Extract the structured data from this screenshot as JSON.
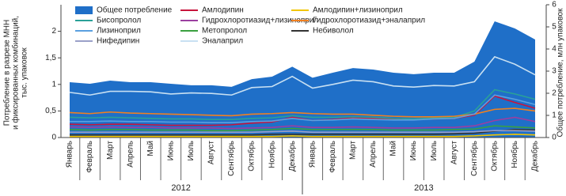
{
  "chart_data": {
    "type": "area-line",
    "y_label": [
      "Потребление в разрезе МНН",
      "и фиксированных комбинаций,",
      "тыс. упаковок"
    ],
    "y2_label": [
      "Общее потребление, млн упаковок"
    ],
    "categories": [
      "Январь",
      "Февраль",
      "Март",
      "Апрель",
      "Май",
      "Июнь",
      "Июль",
      "Август",
      "Сентябрь",
      "Октябрь",
      "Ноябрь",
      "Декабрь",
      "Январь",
      "Февраль",
      "Март",
      "Апрель",
      "Май",
      "Июнь",
      "Июль",
      "Август",
      "Сентябрь",
      "Октябрь",
      "Ноябрь",
      "Декабрь"
    ],
    "x_groups": [
      "2012",
      "2013"
    ],
    "ylim": [
      0,
      2.5
    ],
    "yticks": [
      0,
      {
        "value": 0.5,
        "label": "0,5"
      },
      1,
      {
        "value": 1.5,
        "label": "1,5"
      },
      2
    ],
    "y2lim": [
      0,
      6
    ],
    "y2ticks": [
      0,
      1,
      2,
      3,
      4,
      5,
      6
    ],
    "series": [
      {
        "name": "Общее потребление",
        "color": "#1f6fc8",
        "axis": "y2",
        "values": [
          2.5,
          2.43,
          2.57,
          2.5,
          2.5,
          2.43,
          2.36,
          2.36,
          2.29,
          2.64,
          2.75,
          3.2,
          2.7,
          2.93,
          3.14,
          3.07,
          2.93,
          2.86,
          2.93,
          2.93,
          3.43,
          5.25,
          4.93,
          4.43
        ]
      },
      {
        "name": "Амлодипин",
        "color": "#c8143c",
        "values": [
          0.25,
          0.24,
          0.25,
          0.25,
          0.24,
          0.23,
          0.23,
          0.23,
          0.24,
          0.27,
          0.29,
          0.38,
          0.32,
          0.34,
          0.37,
          0.36,
          0.34,
          0.34,
          0.35,
          0.36,
          0.42,
          0.78,
          0.66,
          0.55
        ]
      },
      {
        "name": "Амлодипин+лизиноприл",
        "color": "#f2c500",
        "values": [
          0.02,
          0.02,
          0.02,
          0.02,
          0.02,
          0.02,
          0.02,
          0.02,
          0.02,
          0.02,
          0.02,
          0.03,
          0.02,
          0.02,
          0.02,
          0.02,
          0.02,
          0.02,
          0.02,
          0.02,
          0.03,
          0.05,
          0.06,
          0.05
        ]
      },
      {
        "name": "Бисопролол",
        "color": "#2aa198",
        "values": [
          0.38,
          0.37,
          0.38,
          0.37,
          0.36,
          0.35,
          0.35,
          0.34,
          0.34,
          0.36,
          0.37,
          0.41,
          0.38,
          0.38,
          0.39,
          0.38,
          0.36,
          0.35,
          0.37,
          0.38,
          0.5,
          0.9,
          0.82,
          0.72
        ]
      },
      {
        "name": "Гидрохлоротиазид+лизиноприл",
        "color": "#9b3fa0",
        "values": [
          0.2,
          0.19,
          0.2,
          0.19,
          0.19,
          0.18,
          0.18,
          0.18,
          0.17,
          0.18,
          0.19,
          0.22,
          0.19,
          0.19,
          0.2,
          0.19,
          0.18,
          0.18,
          0.19,
          0.19,
          0.22,
          0.32,
          0.38,
          0.3
        ]
      },
      {
        "name": "Гидрохлоротиазид+эналаприл",
        "color": "#f08020",
        "values": [
          0.47,
          0.45,
          0.48,
          0.46,
          0.45,
          0.44,
          0.43,
          0.42,
          0.41,
          0.44,
          0.45,
          0.47,
          0.45,
          0.44,
          0.44,
          0.42,
          0.4,
          0.39,
          0.39,
          0.4,
          0.44,
          0.53,
          0.55,
          0.5
        ]
      },
      {
        "name": "Лизиноприл",
        "color": "#5aa0e0",
        "values": [
          0.3,
          0.3,
          0.31,
          0.3,
          0.3,
          0.29,
          0.29,
          0.28,
          0.28,
          0.3,
          0.31,
          0.36,
          0.32,
          0.33,
          0.35,
          0.34,
          0.33,
          0.33,
          0.35,
          0.36,
          0.44,
          0.8,
          0.72,
          0.62
        ]
      },
      {
        "name": "Метопролол",
        "color": "#3aa040",
        "values": [
          0.15,
          0.14,
          0.15,
          0.15,
          0.14,
          0.14,
          0.14,
          0.13,
          0.13,
          0.14,
          0.15,
          0.17,
          0.15,
          0.15,
          0.15,
          0.15,
          0.14,
          0.14,
          0.14,
          0.15,
          0.16,
          0.22,
          0.2,
          0.18
        ]
      },
      {
        "name": "Небиволол",
        "color": "#333333",
        "values": [
          0.05,
          0.05,
          0.05,
          0.05,
          0.05,
          0.05,
          0.05,
          0.05,
          0.05,
          0.05,
          0.06,
          0.06,
          0.06,
          0.06,
          0.06,
          0.06,
          0.06,
          0.06,
          0.06,
          0.07,
          0.08,
          0.12,
          0.15,
          0.14
        ]
      },
      {
        "name": "Нифедипин",
        "color": "#9aa0c8",
        "values": [
          0.1,
          0.1,
          0.1,
          0.1,
          0.1,
          0.1,
          0.1,
          0.1,
          0.1,
          0.1,
          0.11,
          0.12,
          0.1,
          0.1,
          0.1,
          0.1,
          0.1,
          0.1,
          0.1,
          0.1,
          0.11,
          0.13,
          0.13,
          0.12
        ]
      },
      {
        "name": "Эналаприл",
        "color": "#c8e0f2",
        "values": [
          0.85,
          0.8,
          0.87,
          0.87,
          0.86,
          0.82,
          0.84,
          0.83,
          0.8,
          0.94,
          0.96,
          1.15,
          0.93,
          1.0,
          1.08,
          1.05,
          0.97,
          0.95,
          0.98,
          0.97,
          1.05,
          1.52,
          1.38,
          1.18
        ]
      }
    ]
  }
}
